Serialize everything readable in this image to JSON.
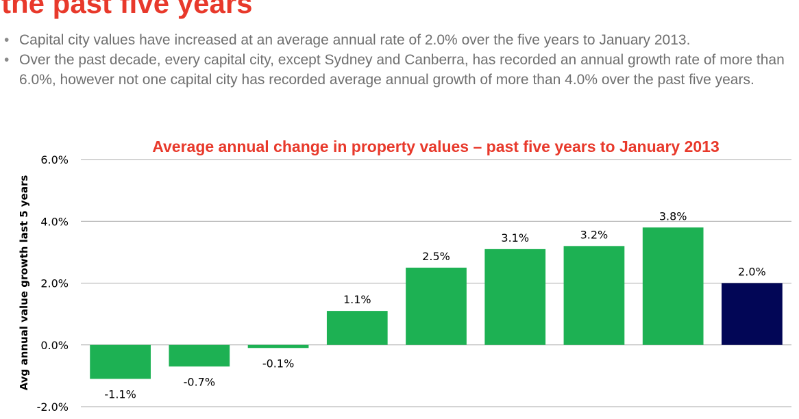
{
  "slide": {
    "heading": "the past five years",
    "bullets": [
      "Capital city values have increased at an average annual rate of 2.0% over the five years to January 2013.",
      "Over the past decade, every capital city, except Sydney and Canberra, has recorded an annual growth rate of more than 6.0%, however not one capital city has recorded average annual growth of more than 4.0% over the past five years."
    ]
  },
  "colors": {
    "heading": "#e8392b",
    "bullet_text": "#6f6f6f",
    "bar_green": "#1db153",
    "bar_highlight": "#020656",
    "gridline": "#a9a9a9"
  },
  "chart_data": {
    "type": "bar",
    "title": "Average annual change in property values – past five years to January 2013",
    "ylabel": "Avg annual value growth last 5 years",
    "xlabel": "",
    "categories": [
      "",
      "",
      "",
      "",
      "",
      "",
      "",
      "",
      ""
    ],
    "values": [
      -1.1,
      -0.7,
      -0.1,
      1.1,
      2.5,
      3.1,
      3.2,
      3.8,
      2.0
    ],
    "value_labels": [
      "-1.1%",
      "-0.7%",
      "-0.1%",
      "1.1%",
      "2.5%",
      "3.1%",
      "3.2%",
      "3.8%",
      "2.0%"
    ],
    "highlight_index": 8,
    "ylim": [
      -2.0,
      6.0
    ],
    "yticks": [
      -2.0,
      0.0,
      2.0,
      4.0,
      6.0
    ],
    "ytick_labels": [
      "-2.0%",
      "0.0%",
      "2.0%",
      "4.0%",
      "6.0%"
    ],
    "grid": true,
    "legend": "none"
  }
}
